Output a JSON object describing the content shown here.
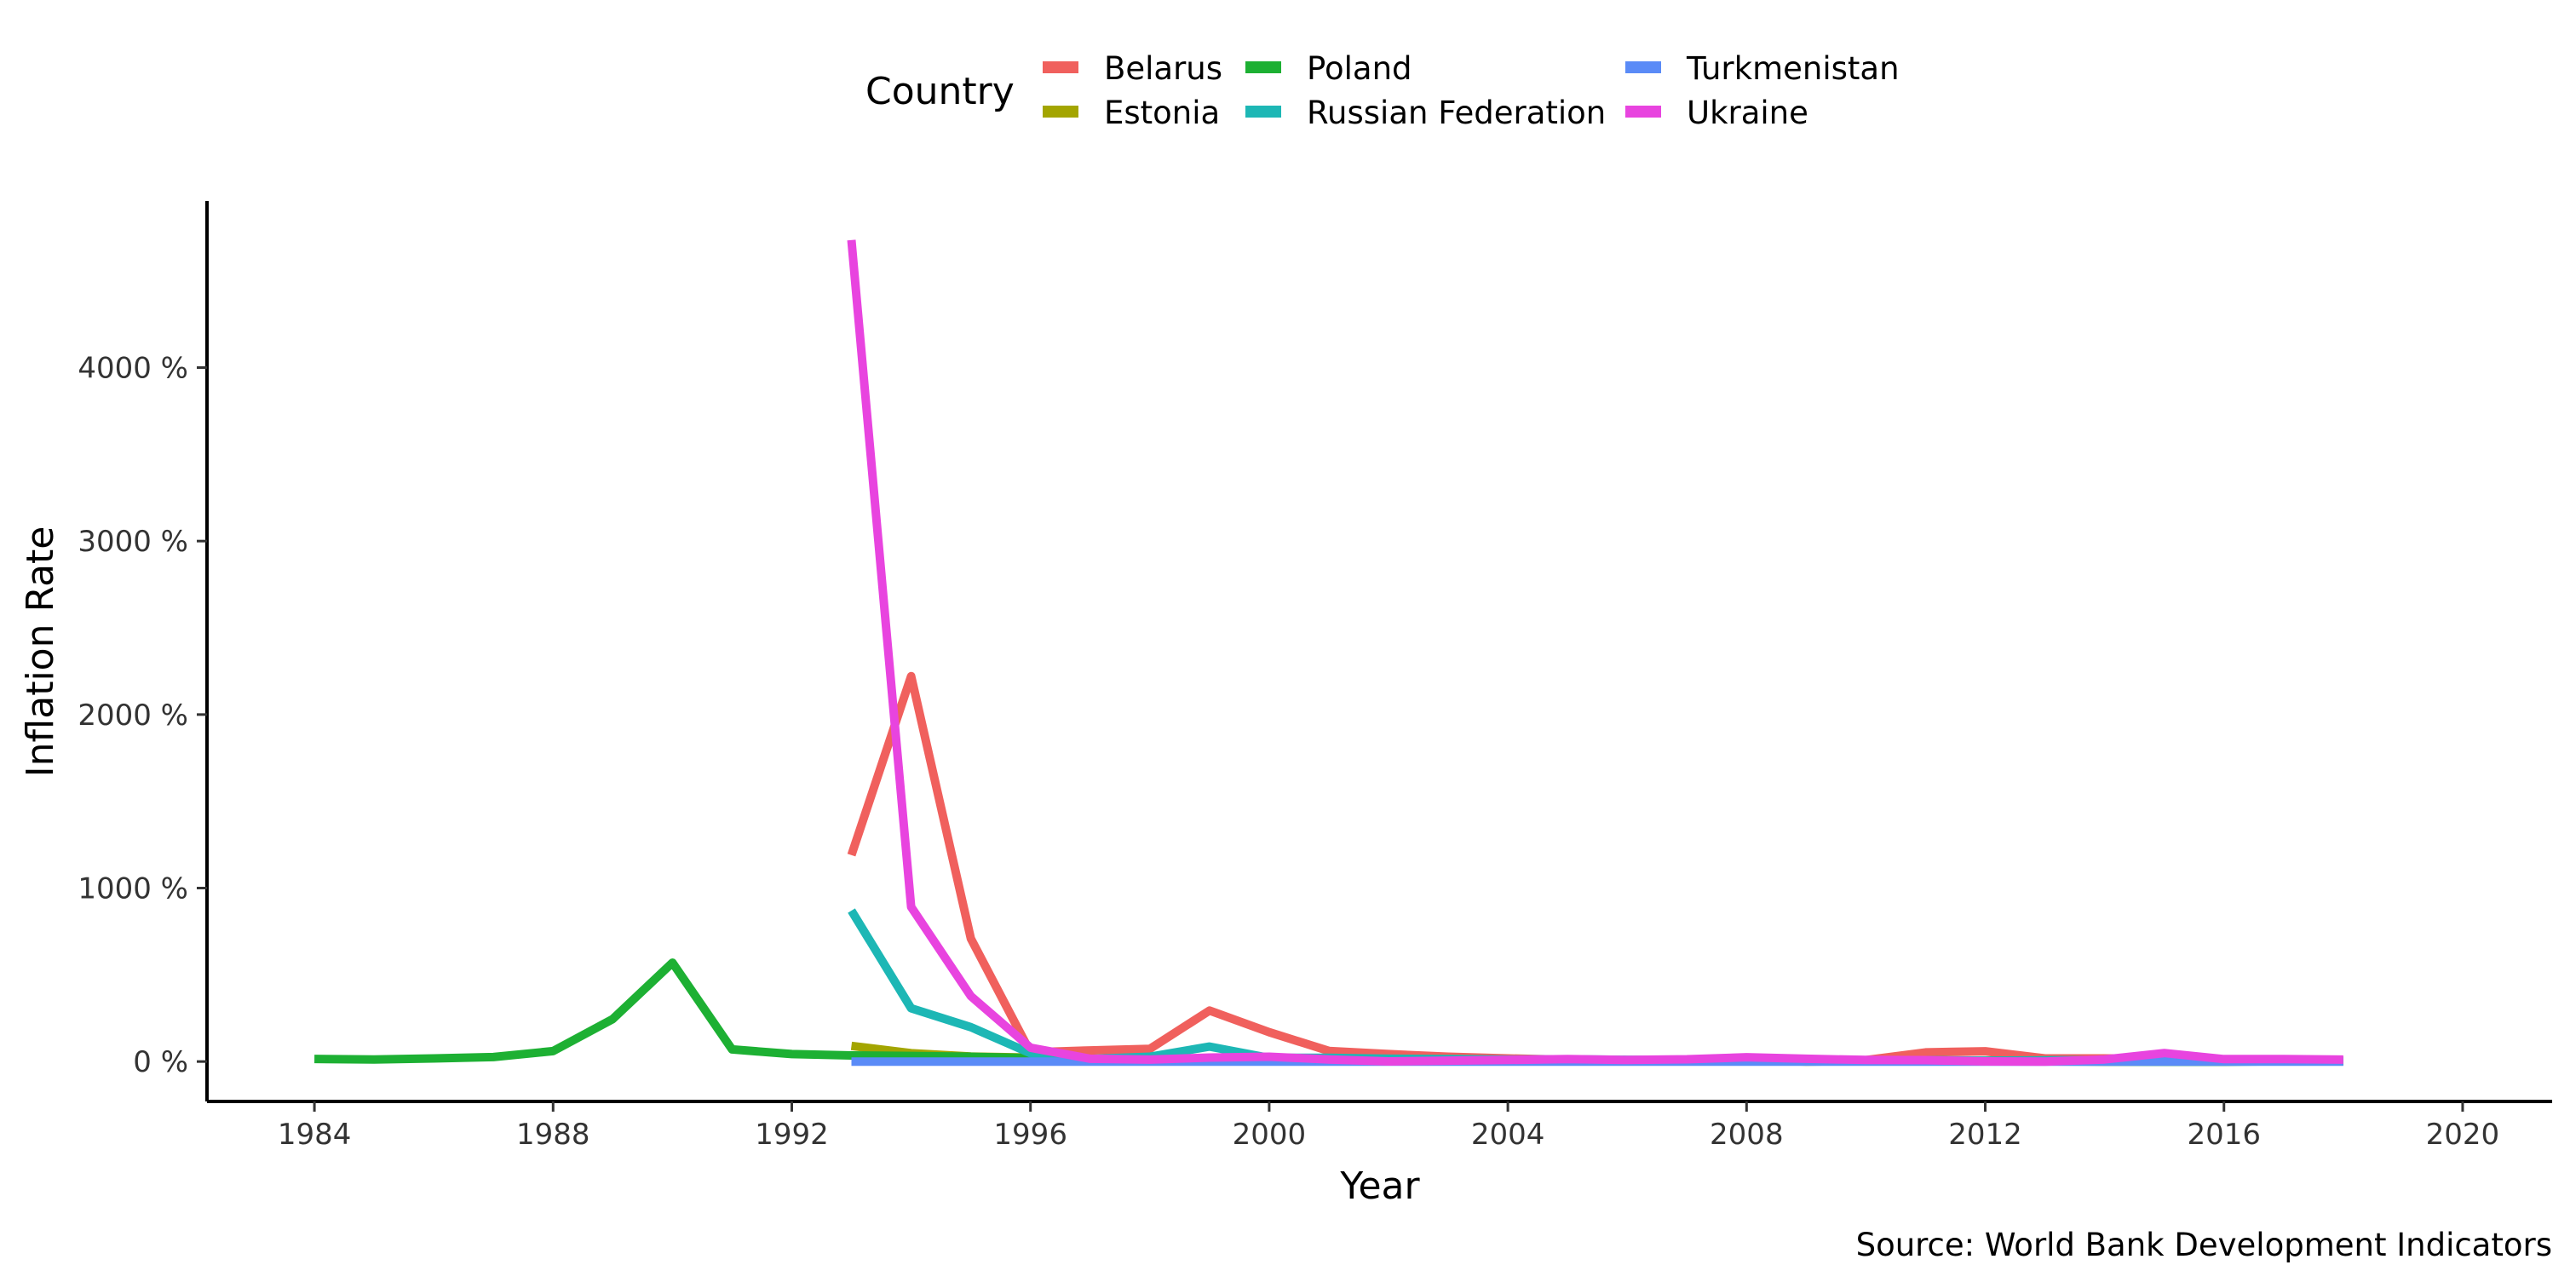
{
  "chart_data": {
    "type": "line",
    "xlabel": "Year",
    "ylabel": "Inflation Rate",
    "caption": "Source: World Bank Development Indicators",
    "legend_title": "Country",
    "legend_position": "top",
    "grid": false,
    "xlim": [
      1982.2,
      2021.5
    ],
    "ylim": [
      -230,
      4960
    ],
    "x_ticks": [
      1984,
      1988,
      1992,
      1996,
      2000,
      2004,
      2008,
      2012,
      2016,
      2020
    ],
    "x_tick_labels": [
      "1984",
      "1988",
      "1992",
      "1996",
      "2000",
      "2004",
      "2008",
      "2012",
      "2016",
      "2020"
    ],
    "y_ticks": [
      0,
      1000,
      2000,
      3000,
      4000
    ],
    "y_tick_labels": [
      "0 %",
      "1000 %",
      "2000 %",
      "3000 %",
      "4000 %"
    ],
    "series": [
      {
        "name": "Belarus",
        "color": "#F0605D",
        "x": [
          1993,
          1994,
          1995,
          1996,
          1997,
          1998,
          1999,
          2000,
          2001,
          2002,
          2003,
          2004,
          2005,
          2006,
          2007,
          2008,
          2009,
          2010,
          2011,
          2012,
          2013,
          2014,
          2015,
          2016,
          2017,
          2018
        ],
        "y": [
          1190,
          2221,
          709,
          53,
          64,
          73,
          294,
          169,
          61,
          43,
          28,
          18,
          10,
          7,
          8,
          15,
          13,
          8,
          53,
          59,
          18,
          18,
          14,
          11,
          6,
          5
        ]
      },
      {
        "name": "Estonia",
        "color": "#A3A500",
        "x": [
          1993,
          1994,
          1995,
          1996,
          1997,
          1998,
          1999,
          2000,
          2001,
          2002,
          2003,
          2004,
          2005,
          2006,
          2007,
          2008,
          2009,
          2010,
          2011,
          2012,
          2013,
          2014,
          2015,
          2016,
          2017,
          2018
        ],
        "y": [
          90,
          48,
          29,
          23,
          11,
          8,
          3,
          4,
          6,
          4,
          1,
          3,
          4,
          4,
          7,
          11,
          0,
          3,
          5,
          4,
          3,
          0,
          0,
          0,
          3,
          3
        ]
      },
      {
        "name": "Poland",
        "color": "#1DB033",
        "x": [
          1984,
          1985,
          1986,
          1987,
          1988,
          1989,
          1990,
          1991,
          1992,
          1993,
          1994,
          1995,
          1996,
          1997,
          1998,
          1999,
          2000,
          2001,
          2002,
          2003,
          2004,
          2005,
          2006,
          2007,
          2008,
          2009,
          2010,
          2011,
          2012,
          2013,
          2014,
          2015,
          2016,
          2017,
          2018
        ],
        "y": [
          15,
          12,
          18,
          26,
          60,
          245,
          570,
          70,
          43,
          35,
          32,
          28,
          20,
          15,
          12,
          7,
          10,
          5,
          2,
          1,
          4,
          2,
          1,
          2,
          4,
          4,
          3,
          4,
          4,
          1,
          0,
          -1,
          -1,
          2,
          2
        ]
      },
      {
        "name": "Russian Federation",
        "color": "#1DB7B5",
        "x": [
          1993,
          1994,
          1995,
          1996,
          1997,
          1998,
          1999,
          2000,
          2001,
          2002,
          2003,
          2004,
          2005,
          2006,
          2007,
          2008,
          2009,
          2010,
          2011,
          2012,
          2013,
          2014,
          2015,
          2016,
          2017,
          2018
        ],
        "y": [
          870,
          307,
          198,
          48,
          15,
          28,
          86,
          21,
          22,
          16,
          14,
          11,
          13,
          10,
          9,
          14,
          12,
          7,
          8,
          5,
          7,
          8,
          16,
          7,
          4,
          3
        ]
      },
      {
        "name": "Turkmenistan",
        "color": "#5A8BF7",
        "x": [
          1993,
          1994,
          1995,
          1996,
          1997,
          1998,
          1999,
          2000,
          2001,
          2002,
          2003,
          2004,
          2005,
          2006,
          2007,
          2008,
          2009,
          2010,
          2011,
          2012,
          2013,
          2014,
          2015,
          2016,
          2017,
          2018
        ],
        "y": [
          0,
          0,
          0,
          0,
          0,
          0,
          0,
          0,
          0,
          0,
          0,
          0,
          0,
          0,
          0,
          0,
          0,
          0,
          0,
          0,
          0,
          0,
          0,
          0,
          0,
          0
        ]
      },
      {
        "name": "Ukraine",
        "color": "#E844DF",
        "x": [
          1993,
          1994,
          1995,
          1996,
          1997,
          1998,
          1999,
          2000,
          2001,
          2002,
          2003,
          2004,
          2005,
          2006,
          2007,
          2008,
          2009,
          2010,
          2011,
          2012,
          2013,
          2014,
          2015,
          2016,
          2017,
          2018
        ],
        "y": [
          4735,
          891,
          377,
          80,
          16,
          11,
          23,
          28,
          12,
          1,
          5,
          9,
          14,
          9,
          13,
          25,
          16,
          9,
          8,
          1,
          0,
          12,
          49,
          14,
          14,
          11
        ]
      }
    ]
  }
}
